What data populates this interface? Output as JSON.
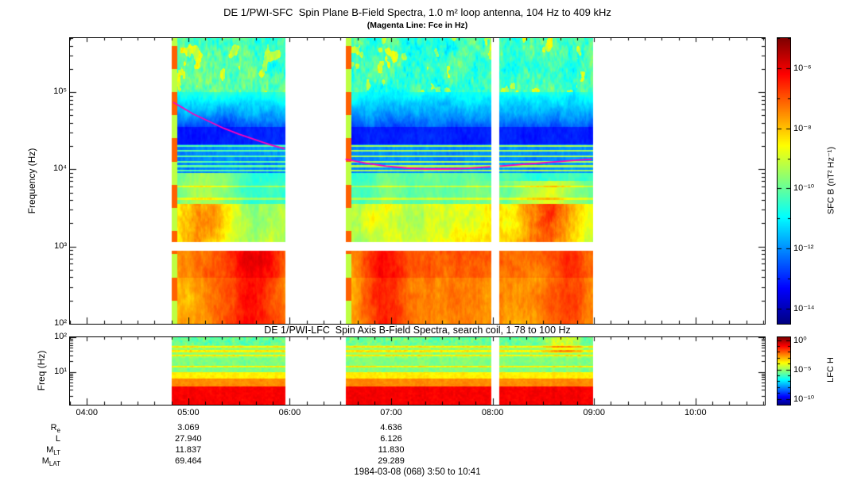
{
  "titles": {
    "main": "DE 1/PWI-SFC  Spin Plane B-Field Spectra, 1.0 m² loop antenna, 104 Hz to 409 kHz",
    "subtitle": "(Magenta Line: Fce in Hz)",
    "lfc": "DE 1/PWI-LFC  Spin Axis B-Field Spectra, search coil, 1.78 to 100 Hz"
  },
  "chart_data": {
    "type": "heatmap",
    "description": "Two-panel time-frequency spectrogram, log frequency axes, rainbow (jet) color scale; data present only during three time segments, white elsewhere; magenta Fce line overplotted on top panel.",
    "panels": [
      {
        "id": "sfc",
        "ylabel": "Frequency (Hz)",
        "y_scale": "log",
        "y_range_hz": [
          100,
          409000
        ],
        "y_tick_exponents": [
          5,
          4,
          3,
          2
        ],
        "no_data_band_log10hz": [
          2.95,
          3.06
        ],
        "colorbar": {
          "label": "SFC B (nT² Hz⁻¹)",
          "tick_exponents": [
            -6,
            -8,
            -10,
            -12,
            -14
          ],
          "range_exponents": [
            -5,
            -14.5
          ]
        }
      },
      {
        "id": "lfc",
        "ylabel": "Freq (Hz)",
        "y_scale": "log",
        "y_range_hz": [
          1.78,
          100
        ],
        "y_tick_exponents": [
          2,
          1
        ],
        "colorbar": {
          "label": "LFC H",
          "tick_exponents": [
            0,
            -5,
            -10
          ],
          "range_exponents": [
            0.5,
            -11
          ]
        }
      }
    ],
    "x_axis": {
      "start_label": "3:50",
      "end_label": "10:41",
      "start_hours": 3.8333,
      "end_hours": 10.6833,
      "tick_hours": [
        4,
        5,
        6,
        7,
        8,
        9,
        10
      ],
      "tick_labels": [
        "04:00",
        "05:00",
        "06:00",
        "07:00",
        "08:00",
        "09:00",
        "10:00"
      ]
    },
    "data_segments_hours": [
      [
        4.833,
        5.95
      ],
      [
        6.55,
        7.983
      ],
      [
        8.067,
        8.983
      ]
    ],
    "fce_line": {
      "color": "#ff00bb",
      "points_hours_hz": [
        [
          4.85,
          74000
        ],
        [
          4.95,
          62000
        ],
        [
          5.05,
          52000
        ],
        [
          5.2,
          42000
        ],
        [
          5.35,
          34000
        ],
        [
          5.5,
          28500
        ],
        [
          5.65,
          24500
        ],
        [
          5.8,
          21000
        ],
        [
          5.95,
          18500
        ],
        [
          6.55,
          13500
        ],
        [
          6.75,
          12000
        ],
        [
          6.95,
          11000
        ],
        [
          7.15,
          10400
        ],
        [
          7.35,
          10100
        ],
        [
          7.55,
          10100
        ],
        [
          7.75,
          10300
        ],
        [
          7.98,
          10800
        ],
        [
          8.07,
          11000
        ],
        [
          8.3,
          11600
        ],
        [
          8.55,
          12300
        ],
        [
          8.75,
          12900
        ],
        [
          8.98,
          13500
        ]
      ]
    }
  },
  "ephemeris": {
    "column_hours": [
      5,
      7
    ],
    "rows": [
      {
        "base": "R",
        "sub": "e",
        "values": [
          "3.069",
          "4.636"
        ]
      },
      {
        "base": "L",
        "sub": "",
        "values": [
          "27.940",
          "6.126"
        ]
      },
      {
        "base": "M",
        "sub": "LT",
        "values": [
          "11.837",
          "11.830"
        ]
      },
      {
        "base": "M",
        "sub": "LAT",
        "values": [
          "69.464",
          "29.289"
        ]
      }
    ]
  },
  "footer": {
    "caption": "1984-03-08 (068) 3:50 to 10:41"
  }
}
